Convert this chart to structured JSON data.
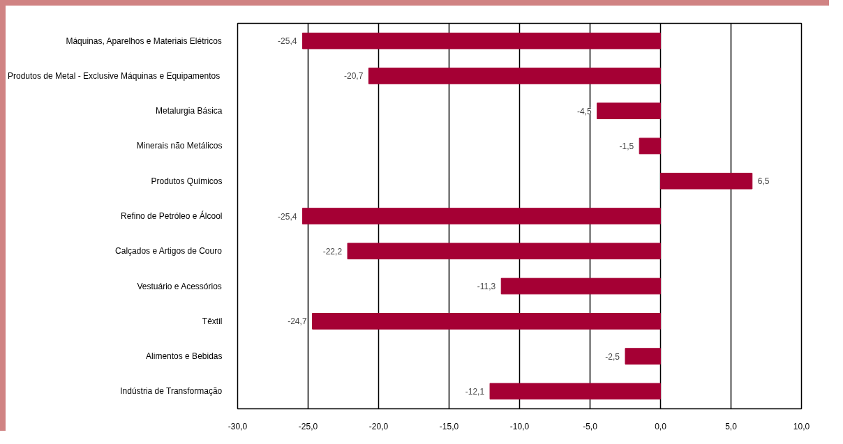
{
  "chart_data": {
    "type": "bar",
    "orientation": "horizontal",
    "categories": [
      "Máquinas, Aparelhos e Materiais Elétricos",
      "Produtos de Metal  - Exclusive Máquinas e Equipamentos",
      "Metalurgia Básica",
      "Minerais não Metálicos",
      "Produtos Químicos",
      "Refino de Petróleo e Álcool",
      "Calçados e Artigos de Couro",
      "Vestuário e Acessórios",
      "Têxtil",
      "Alimentos e Bebidas",
      "Indústria de Transformação"
    ],
    "values": [
      -25.4,
      -20.7,
      -4.5,
      -1.5,
      6.5,
      -25.4,
      -22.2,
      -11.3,
      -24.7,
      -2.5,
      -12.1
    ],
    "value_labels": [
      "-25,4",
      "-20,7",
      "-4,5",
      "-1,5",
      "6,5",
      "-25,4",
      "-22,2",
      "-11,3",
      "-24,7",
      "-2,5",
      "-12,1"
    ],
    "color": "#a50034",
    "xlim": [
      -30,
      10
    ],
    "xticks": [
      {
        "value": -30,
        "label": "-30,0"
      },
      {
        "value": -25,
        "label": "-25,0"
      },
      {
        "value": -20,
        "label": "-20,0"
      },
      {
        "value": -15,
        "label": "-15,0"
      },
      {
        "value": -10,
        "label": "-10,0"
      },
      {
        "value": -5,
        "label": "-5,0"
      },
      {
        "value": 0,
        "label": "0,0"
      },
      {
        "value": 5,
        "label": "5,0"
      },
      {
        "value": 10,
        "label": "10,0"
      }
    ],
    "grid": "x"
  }
}
